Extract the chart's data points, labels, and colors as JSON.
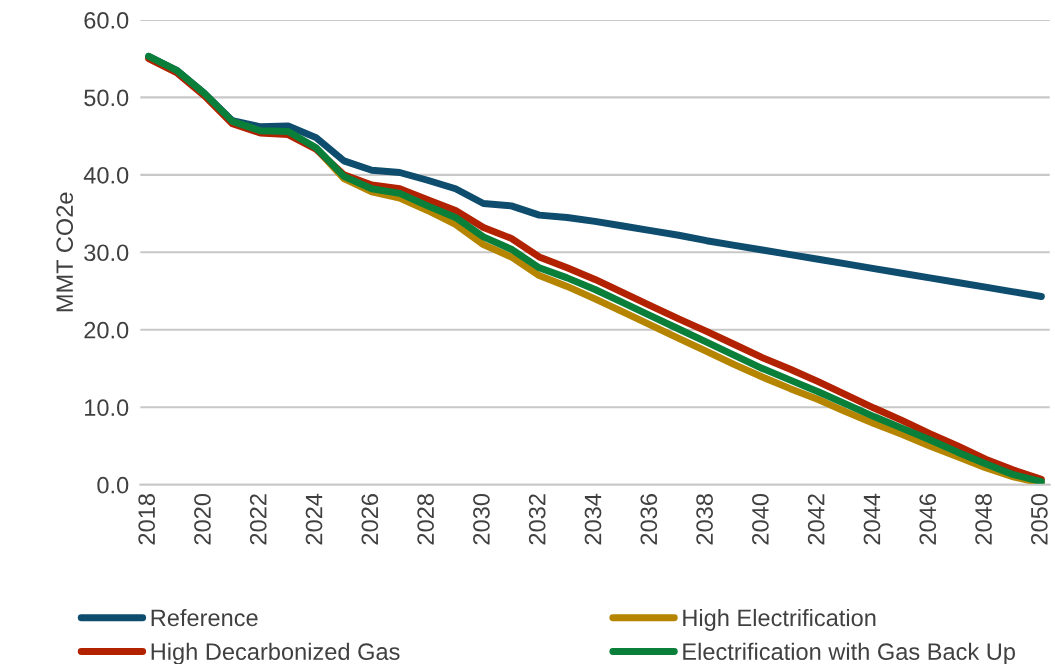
{
  "chart_data": {
    "type": "line",
    "ylabel": "MMT CO2e",
    "categories": [
      "2018",
      null,
      "2020",
      null,
      "2022",
      null,
      "2024",
      null,
      "2026",
      null,
      "2028",
      null,
      "2030",
      null,
      "2032",
      null,
      "2034",
      null,
      "2036",
      null,
      "2038",
      null,
      "2040",
      null,
      "2042",
      null,
      "2044",
      null,
      "2046",
      null,
      "2048",
      null,
      "2050"
    ],
    "ylim": [
      0,
      60
    ],
    "yticks": [
      {
        "value": 0,
        "label": "0.0"
      },
      {
        "value": 10,
        "label": "10.0"
      },
      {
        "value": 20,
        "label": "20.0"
      },
      {
        "value": 30,
        "label": "30.0"
      },
      {
        "value": 40,
        "label": "40.0"
      },
      {
        "value": 50,
        "label": "50.0"
      },
      {
        "value": 60,
        "label": "60.0"
      }
    ],
    "grid": "y",
    "legend": "bottom",
    "line_style": "solid",
    "marker": "none",
    "series": [
      {
        "name": "Reference",
        "color": "#0e4d6e",
        "values": [
          55.3,
          53.5,
          50.5,
          47.0,
          46.2,
          46.3,
          44.8,
          41.8,
          40.6,
          40.3,
          39.3,
          38.2,
          36.3,
          36.0,
          34.8,
          34.5,
          34.0,
          33.4,
          32.8,
          32.2,
          31.5,
          30.9,
          30.3,
          29.7,
          29.1,
          28.5,
          27.9,
          27.3,
          26.7,
          26.1,
          25.5,
          24.9,
          24.3
        ]
      },
      {
        "name": "High Electrification",
        "color": "#b58500",
        "values": [
          null,
          null,
          null,
          null,
          null,
          45.4,
          43.4,
          39.5,
          37.8,
          37.0,
          35.4,
          33.6,
          31.0,
          29.4,
          27.0,
          25.6,
          24.0,
          22.3,
          20.6,
          18.9,
          17.2,
          15.5,
          13.9,
          12.4,
          11.0,
          9.4,
          7.9,
          6.5,
          5.0,
          3.6,
          2.2,
          1.0,
          0.2
        ]
      },
      {
        "name": "High Decarbonized Gas",
        "color": "#b22200",
        "values": [
          55.0,
          53.2,
          50.2,
          46.6,
          45.4,
          45.2,
          43.3,
          40.0,
          38.7,
          38.2,
          36.8,
          35.4,
          33.2,
          31.8,
          29.4,
          28.0,
          26.5,
          24.8,
          23.1,
          21.4,
          19.8,
          18.1,
          16.4,
          14.9,
          13.3,
          11.6,
          9.9,
          8.3,
          6.6,
          5.0,
          3.3,
          1.9,
          0.7
        ]
      },
      {
        "name": "Electrification with Gas Back Up",
        "color": "#0a7f3a",
        "values": [
          55.3,
          53.5,
          50.5,
          46.9,
          45.7,
          45.6,
          43.5,
          39.8,
          38.2,
          37.6,
          36.0,
          34.5,
          32.0,
          30.4,
          28.0,
          26.7,
          25.2,
          23.5,
          21.8,
          20.1,
          18.4,
          16.7,
          15.0,
          13.5,
          12.0,
          10.4,
          8.8,
          7.3,
          5.8,
          4.2,
          2.7,
          1.3,
          0.4
        ]
      }
    ]
  }
}
